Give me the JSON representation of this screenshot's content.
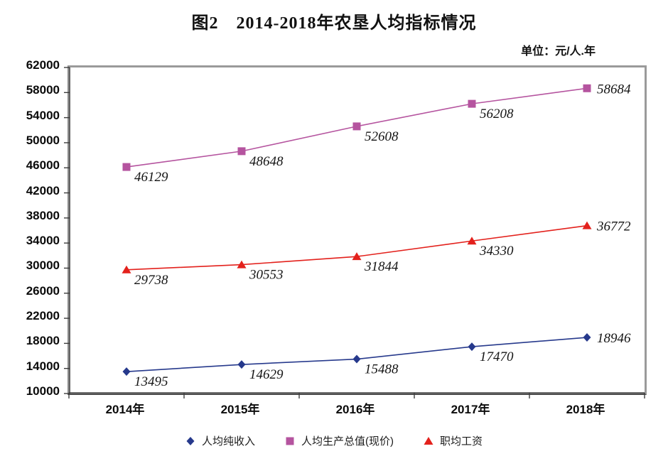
{
  "title": "图2　2014-2018年农垦人均指标情况",
  "unit_label": "单位：元/人.年",
  "chart_data": {
    "type": "line",
    "title": "图2　2014-2018年农垦人均指标情况",
    "subtitle_unit": "单位：元/人.年",
    "categories": [
      "2014年",
      "2015年",
      "2016年",
      "2017年",
      "2018年"
    ],
    "series": [
      {
        "name": "人均纯收入",
        "marker": "diamond",
        "color": "#26398C",
        "values": [
          13495,
          14629,
          15488,
          17470,
          18946
        ]
      },
      {
        "name": "人均生产总值(现价)",
        "marker": "square",
        "color": "#B5549F",
        "values": [
          46129,
          48648,
          52608,
          56208,
          58684
        ]
      },
      {
        "name": "职均工资",
        "marker": "triangle",
        "color": "#E3211C",
        "values": [
          29738,
          30553,
          31844,
          34330,
          36772
        ]
      }
    ],
    "xlabel": "",
    "ylabel": "",
    "ylim": [
      10000,
      62000
    ],
    "ytick_step": 4000,
    "yticks": [
      10000,
      14000,
      18000,
      22000,
      26000,
      30000,
      34000,
      38000,
      42000,
      46000,
      50000,
      54000,
      58000,
      62000
    ],
    "grid": false,
    "legend_position": "bottom",
    "data_labels": true
  }
}
